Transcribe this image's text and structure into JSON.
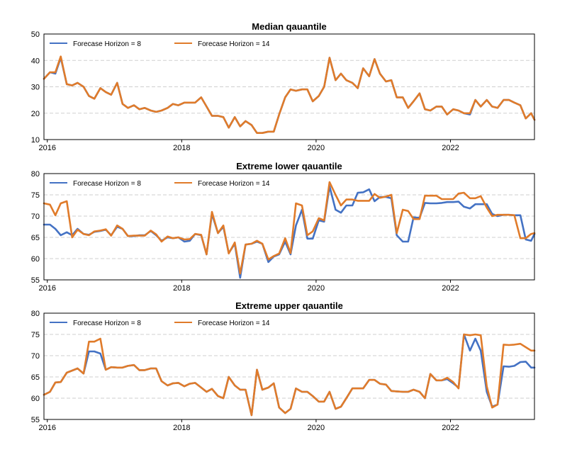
{
  "chart_data": [
    {
      "type": "line",
      "title": "Median qauantile",
      "xlabel": "",
      "ylabel": "",
      "ylim": [
        10,
        50
      ],
      "yticks": [
        "50",
        "40",
        "30",
        "20",
        "10"
      ],
      "xticks": [
        "2016",
        "2018",
        "2020",
        "2022"
      ],
      "xlim": [
        2015.95,
        2023.25
      ],
      "grid": "horizontal dashed",
      "legend": "top-left",
      "x": [
        2015.95,
        2016.04,
        2016.12,
        2016.2,
        2016.29,
        2016.37,
        2016.45,
        2016.54,
        2016.62,
        2016.7,
        2016.79,
        2016.87,
        2016.95,
        2017.04,
        2017.12,
        2017.2,
        2017.29,
        2017.37,
        2017.45,
        2017.54,
        2017.62,
        2017.7,
        2017.79,
        2017.87,
        2017.95,
        2018.04,
        2018.12,
        2018.2,
        2018.29,
        2018.37,
        2018.45,
        2018.54,
        2018.62,
        2018.7,
        2018.79,
        2018.87,
        2018.95,
        2019.04,
        2019.12,
        2019.2,
        2019.29,
        2019.37,
        2019.45,
        2019.54,
        2019.62,
        2019.7,
        2019.79,
        2019.87,
        2019.95,
        2020.04,
        2020.12,
        2020.2,
        2020.29,
        2020.37,
        2020.45,
        2020.54,
        2020.62,
        2020.7,
        2020.79,
        2020.87,
        2020.95,
        2021.04,
        2021.12,
        2021.2,
        2021.29,
        2021.37,
        2021.45,
        2021.54,
        2021.62,
        2021.7,
        2021.79,
        2021.87,
        2021.95,
        2022.04,
        2022.12,
        2022.2,
        2022.29,
        2022.37,
        2022.45,
        2022.54,
        2022.62,
        2022.7,
        2022.79,
        2022.87,
        2022.95,
        2023.04,
        2023.12,
        2023.2,
        2023.25
      ],
      "series": [
        {
          "name": "Forecase Horizon = 8",
          "color": "#4472c4",
          "values": [
            33,
            35.5,
            35,
            41,
            31,
            30.5,
            31.5,
            30,
            26.5,
            25.5,
            29.5,
            28,
            27,
            31.5,
            23.5,
            22,
            23,
            21.5,
            22,
            21,
            20.5,
            21,
            22,
            23.5,
            23,
            24,
            24,
            24,
            26,
            22.5,
            19,
            19,
            18.5,
            14.5,
            18.5,
            15,
            17,
            15.5,
            12.5,
            12.5,
            13,
            13,
            19.5,
            26,
            29,
            28.5,
            29,
            29,
            24.5,
            26.5,
            30,
            41,
            32.5,
            35,
            32.5,
            31.5,
            29.5,
            37,
            34,
            40.5,
            35,
            32,
            32.5,
            26,
            26,
            22,
            24.5,
            27.5,
            21.5,
            21,
            22.5,
            22.5,
            19.5,
            21.5,
            21,
            20,
            19.5,
            25,
            22.5,
            25,
            22.5,
            22,
            25,
            25,
            24,
            23,
            18,
            20,
            17.5
          ]
        },
        {
          "name": "Forecase Horizon = 14",
          "color": "#e07b2a",
          "values": [
            33,
            35.5,
            35.5,
            41.5,
            31,
            30.5,
            31.5,
            30,
            26.5,
            25.5,
            29.5,
            28,
            27,
            31.5,
            23.5,
            22,
            23,
            21.5,
            22,
            21,
            20.5,
            21,
            22,
            23.5,
            23,
            24,
            24,
            24,
            26,
            22.5,
            19,
            19,
            18.5,
            14.5,
            18.5,
            15,
            17,
            15.5,
            12.5,
            12.5,
            13,
            13,
            19.5,
            26,
            29,
            28.5,
            29,
            29,
            24.5,
            26.5,
            30,
            41,
            32.5,
            35,
            32.5,
            31.5,
            29.5,
            37,
            34,
            40.5,
            35,
            32,
            32.5,
            26,
            26,
            22,
            24.5,
            27.5,
            21.5,
            21,
            22.5,
            22.5,
            19.5,
            21.5,
            21,
            20,
            20,
            25,
            22.5,
            25,
            22.5,
            22,
            25,
            25,
            24,
            23,
            18,
            20,
            17.5
          ]
        }
      ]
    },
    {
      "type": "line",
      "title": "Extreme lower qauantile",
      "xlabel": "",
      "ylabel": "",
      "ylim": [
        55,
        80
      ],
      "yticks": [
        "80",
        "75",
        "70",
        "65",
        "60",
        "55"
      ],
      "xticks": [
        "2016",
        "2018",
        "2020",
        "2022"
      ],
      "xlim": [
        2015.95,
        2023.25
      ],
      "grid": "horizontal dashed",
      "legend": "top-left",
      "x": [
        2015.95,
        2016.04,
        2016.12,
        2016.2,
        2016.29,
        2016.37,
        2016.45,
        2016.54,
        2016.62,
        2016.7,
        2016.79,
        2016.87,
        2016.95,
        2017.04,
        2017.12,
        2017.2,
        2017.29,
        2017.37,
        2017.45,
        2017.54,
        2017.62,
        2017.7,
        2017.79,
        2017.87,
        2017.95,
        2018.04,
        2018.12,
        2018.2,
        2018.29,
        2018.37,
        2018.45,
        2018.54,
        2018.62,
        2018.7,
        2018.79,
        2018.87,
        2018.95,
        2019.04,
        2019.12,
        2019.2,
        2019.29,
        2019.37,
        2019.45,
        2019.54,
        2019.62,
        2019.7,
        2019.79,
        2019.87,
        2019.95,
        2020.04,
        2020.12,
        2020.2,
        2020.29,
        2020.37,
        2020.45,
        2020.54,
        2020.62,
        2020.7,
        2020.79,
        2020.87,
        2020.95,
        2021.04,
        2021.12,
        2021.2,
        2021.29,
        2021.37,
        2021.45,
        2021.54,
        2021.62,
        2021.7,
        2021.79,
        2021.87,
        2021.95,
        2022.04,
        2022.12,
        2022.2,
        2022.29,
        2022.37,
        2022.45,
        2022.54,
        2022.62,
        2022.7,
        2022.79,
        2022.87,
        2022.95,
        2023.04,
        2023.12,
        2023.2,
        2023.25
      ],
      "series": [
        {
          "name": "Forecase Horizon = 8",
          "color": "#4472c4",
          "values": [
            68,
            68,
            67,
            65.5,
            66.2,
            65.5,
            67,
            65.8,
            65.6,
            66.3,
            66.5,
            66.8,
            65.5,
            67.5,
            67,
            65.3,
            65.3,
            65.5,
            65.5,
            66.5,
            65.5,
            64.2,
            65,
            64.8,
            65,
            64,
            64.2,
            65.8,
            65.5,
            61,
            70.5,
            66,
            67.5,
            61.3,
            63.5,
            55.5,
            63.3,
            63.5,
            64,
            63.5,
            59.2,
            60.5,
            61,
            64,
            61,
            67.8,
            71.5,
            64.7,
            64.7,
            69,
            68.7,
            77,
            71.5,
            70.8,
            72.5,
            72.5,
            75.5,
            75.6,
            76.3,
            73.5,
            74.5,
            74.5,
            74.2,
            65.5,
            64,
            64,
            69.7,
            69.6,
            73.1,
            73,
            73,
            73.1,
            73.3,
            73.3,
            73.4,
            72.2,
            71.8,
            72.8,
            72.8,
            72.8,
            70.5,
            70,
            70.3,
            70.3,
            70.2,
            70.2,
            64.5,
            64.2,
            65.8
          ]
        },
        {
          "name": "Forecase Horizon = 14",
          "color": "#e07b2a",
          "values": [
            73,
            72.7,
            70.2,
            73,
            73.5,
            65,
            66.8,
            65.8,
            65.5,
            66.4,
            66.6,
            66.9,
            65.4,
            67.8,
            67,
            65.3,
            65.4,
            65.4,
            65.4,
            66.6,
            65.7,
            64,
            65.2,
            64.8,
            65,
            64.5,
            64.6,
            65.8,
            65.6,
            61,
            71,
            66,
            67.8,
            61.2,
            63.8,
            56.5,
            63.3,
            63.5,
            64.2,
            63.5,
            59.8,
            60.6,
            61.2,
            64.8,
            61.3,
            73,
            72.5,
            65.5,
            66.4,
            69.5,
            69,
            78,
            75,
            72.5,
            73.9,
            73.9,
            73.6,
            73.6,
            73.6,
            75.2,
            74.3,
            74.6,
            75,
            66,
            71.5,
            71.2,
            69.3,
            69.3,
            74.8,
            74.8,
            74.8,
            74,
            74,
            74,
            75.3,
            75.5,
            74.2,
            74.2,
            74.7,
            72,
            70,
            70.3,
            70.3,
            70.3,
            70.2,
            64.8,
            64.8,
            65.8,
            66
          ]
        }
      ]
    },
    {
      "type": "line",
      "title": "Extreme upper qauantile",
      "xlabel": "",
      "ylabel": "",
      "ylim": [
        55,
        80
      ],
      "yticks": [
        "80",
        "75",
        "70",
        "65",
        "60",
        "55"
      ],
      "xticks": [
        "2016",
        "2018",
        "2020",
        "2022"
      ],
      "xlim": [
        2015.95,
        2023.25
      ],
      "grid": "horizontal dashed",
      "legend": "top-left",
      "x": [
        2015.95,
        2016.04,
        2016.12,
        2016.2,
        2016.29,
        2016.37,
        2016.45,
        2016.54,
        2016.62,
        2016.7,
        2016.79,
        2016.87,
        2016.95,
        2017.04,
        2017.12,
        2017.2,
        2017.29,
        2017.37,
        2017.45,
        2017.54,
        2017.62,
        2017.7,
        2017.79,
        2017.87,
        2017.95,
        2018.04,
        2018.12,
        2018.2,
        2018.29,
        2018.37,
        2018.45,
        2018.54,
        2018.62,
        2018.7,
        2018.79,
        2018.87,
        2018.95,
        2019.04,
        2019.12,
        2019.2,
        2019.29,
        2019.37,
        2019.45,
        2019.54,
        2019.62,
        2019.7,
        2019.79,
        2019.87,
        2019.95,
        2020.04,
        2020.12,
        2020.2,
        2020.29,
        2020.37,
        2020.45,
        2020.54,
        2020.62,
        2020.7,
        2020.79,
        2020.87,
        2020.95,
        2021.04,
        2021.12,
        2021.2,
        2021.29,
        2021.37,
        2021.45,
        2021.54,
        2021.62,
        2021.7,
        2021.79,
        2021.87,
        2021.95,
        2022.04,
        2022.12,
        2022.2,
        2022.29,
        2022.37,
        2022.45,
        2022.54,
        2022.62,
        2022.7,
        2022.79,
        2022.87,
        2022.95,
        2023.04,
        2023.12,
        2023.2,
        2023.25
      ],
      "series": [
        {
          "name": "Forecase Horizon = 8",
          "color": "#4472c4",
          "values": [
            60.8,
            61.5,
            63.7,
            63.8,
            66,
            66.5,
            67,
            65.8,
            71,
            71,
            70.5,
            66.7,
            67.3,
            67.2,
            67.2,
            67.6,
            67.8,
            66.6,
            66.6,
            67,
            67,
            64,
            63,
            63.5,
            63.6,
            62.8,
            63.4,
            63.6,
            62.5,
            61.5,
            62.2,
            60.5,
            60,
            65,
            63,
            62,
            62,
            56,
            66.7,
            62,
            62.5,
            63.5,
            57.8,
            56.5,
            57.5,
            62.3,
            61.5,
            61.5,
            60.5,
            59.2,
            59.2,
            61.5,
            57.5,
            58,
            60,
            62.3,
            62.3,
            62.3,
            64.3,
            64.3,
            63.4,
            63.2,
            61.7,
            61.6,
            61.5,
            61.5,
            62,
            61.5,
            60,
            65.7,
            64.2,
            64.2,
            64.5,
            63.5,
            62.5,
            75,
            71.2,
            74,
            71.2,
            61.5,
            58,
            58.5,
            67.5,
            67.4,
            67.6,
            68.5,
            68.6,
            67.2,
            67.2
          ]
        },
        {
          "name": "Forecase Horizon = 14",
          "color": "#e07b2a",
          "values": [
            60.8,
            61.5,
            63.7,
            63.8,
            66,
            66.5,
            67,
            65.8,
            73.3,
            73.3,
            74,
            66.7,
            67.3,
            67.2,
            67.2,
            67.6,
            67.8,
            66.6,
            66.6,
            67,
            67,
            64,
            63,
            63.5,
            63.6,
            62.8,
            63.4,
            63.6,
            62.5,
            61.5,
            62.2,
            60.5,
            60,
            65,
            63,
            62,
            62,
            56,
            66.7,
            62,
            62.5,
            63.5,
            57.8,
            56.5,
            57.5,
            62.3,
            61.5,
            61.5,
            60.5,
            59.2,
            59.2,
            61.5,
            57.5,
            58,
            60,
            62.3,
            62.3,
            62.3,
            64.3,
            64.3,
            63.4,
            63.2,
            61.7,
            61.6,
            61.5,
            61.5,
            62,
            61.5,
            60,
            65.7,
            64.2,
            64.2,
            64.8,
            63.8,
            62.3,
            75,
            74.8,
            75,
            74.8,
            62.8,
            57.8,
            58.5,
            72.6,
            72.5,
            72.6,
            72.8,
            72,
            71.2,
            71.2
          ]
        }
      ]
    }
  ]
}
